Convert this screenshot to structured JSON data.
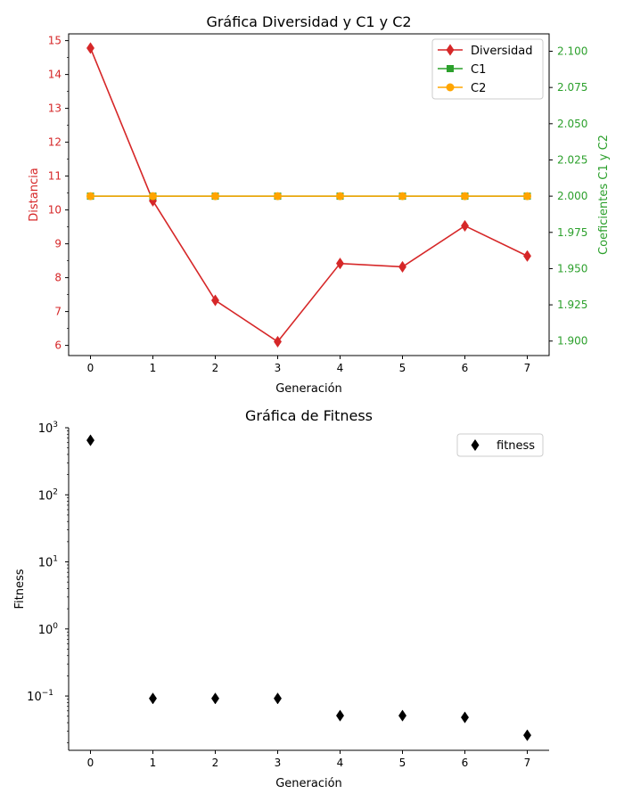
{
  "chart_data": [
    {
      "type": "line",
      "title": "Gráfica Diversidad y C1 y C2",
      "xlabel": "Generación",
      "ylabel": "Distancia",
      "ylabel_right": "Coeficientes C1 y C2",
      "x": [
        0,
        1,
        2,
        3,
        4,
        5,
        6,
        7
      ],
      "xlim": [
        -0.35,
        7.35
      ],
      "ylim": [
        5.7,
        15.2
      ],
      "ylim_right": [
        1.89,
        2.112
      ],
      "yticks": [
        6,
        7,
        8,
        9,
        10,
        11,
        12,
        13,
        14,
        15
      ],
      "yticks_right": [
        "1.900",
        "1.925",
        "1.950",
        "1.975",
        "2.000",
        "2.025",
        "2.050",
        "2.075",
        "2.100"
      ],
      "legend_position": "top-right",
      "grid": false,
      "series": [
        {
          "name": "Diversidad",
          "axis": "left",
          "marker": "diamond",
          "color": "#d62728",
          "values": [
            14.78,
            10.27,
            7.33,
            6.11,
            8.42,
            8.32,
            9.53,
            8.64
          ]
        },
        {
          "name": "C1",
          "axis": "right",
          "marker": "square",
          "color": "#2ca02c",
          "values": [
            2.0,
            2.0,
            2.0,
            2.0,
            2.0,
            2.0,
            2.0,
            2.0
          ]
        },
        {
          "name": "C2",
          "axis": "right",
          "marker": "circle",
          "color": "#ffa500",
          "values": [
            2.0,
            2.0,
            2.0,
            2.0,
            2.0,
            2.0,
            2.0,
            2.0
          ]
        }
      ],
      "colors": {
        "left_axis": "#d62728",
        "right_axis": "#2ca02c"
      }
    },
    {
      "type": "scatter",
      "title": "Gráfica de Fitness",
      "xlabel": "Generación",
      "ylabel": "Fitness",
      "yscale": "log",
      "x": [
        0,
        1,
        2,
        3,
        4,
        5,
        6,
        7
      ],
      "xlim": [
        -0.35,
        7.35
      ],
      "ylim": [
        0.0155,
        1000
      ],
      "legend_position": "top-right",
      "grid": false,
      "series": [
        {
          "name": "fitness",
          "marker": "diamond",
          "color": "#000000",
          "values": [
            650,
            0.092,
            0.092,
            0.092,
            0.051,
            0.051,
            0.048,
            0.026
          ]
        }
      ]
    }
  ]
}
